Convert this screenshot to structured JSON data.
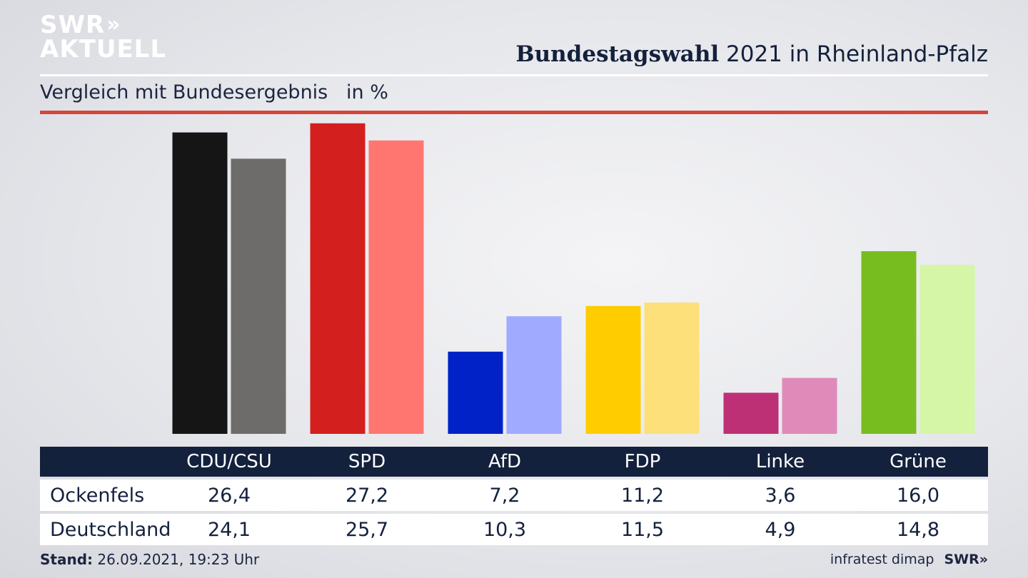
{
  "logo": {
    "line1": "SWR",
    "chevrons": "»",
    "line2": "AKTUELL"
  },
  "header": {
    "title_bold": "Bundestagswahl",
    "title_rest": " 2021 in Rheinland-Pfalz",
    "subtitle": "Vergleich mit Bundesergebnis   in %"
  },
  "colors": {
    "header_navy": "#14213d",
    "accent_red": "#d4463b"
  },
  "chart_data": {
    "type": "bar",
    "categories": [
      "CDU/CSU",
      "SPD",
      "AfD",
      "FDP",
      "Linke",
      "Grüne"
    ],
    "series": [
      {
        "name": "Ockenfels",
        "values": [
          26.4,
          27.2,
          7.2,
          11.2,
          3.6,
          16.0
        ],
        "colors": [
          "#151515",
          "#d41f1f",
          "#0022c6",
          "#ffcc00",
          "#bd3076",
          "#78bd1f"
        ]
      },
      {
        "name": "Deutschland",
        "values": [
          24.1,
          25.7,
          10.3,
          11.5,
          4.9,
          14.8
        ],
        "colors": [
          "#6e6c6a",
          "#ff7670",
          "#a0aaff",
          "#fde07a",
          "#e08ab9",
          "#d5f6a7"
        ]
      }
    ],
    "ylim": [
      0,
      28
    ]
  },
  "table": {
    "headers": [
      "CDU/CSU",
      "SPD",
      "AfD",
      "FDP",
      "Linke",
      "Grüne"
    ],
    "rows": [
      {
        "label": "Ockenfels",
        "values": [
          "26,4",
          "27,2",
          "7,2",
          "11,2",
          "3,6",
          "16,0"
        ]
      },
      {
        "label": "Deutschland",
        "values": [
          "24,1",
          "25,7",
          "10,3",
          "11,5",
          "4,9",
          "14,8"
        ]
      }
    ]
  },
  "footer": {
    "stand_label": "Stand:",
    "stand_value": " 26.09.2021, 19:23 Uhr",
    "source": "infratest dimap",
    "brand": "SWR»"
  }
}
